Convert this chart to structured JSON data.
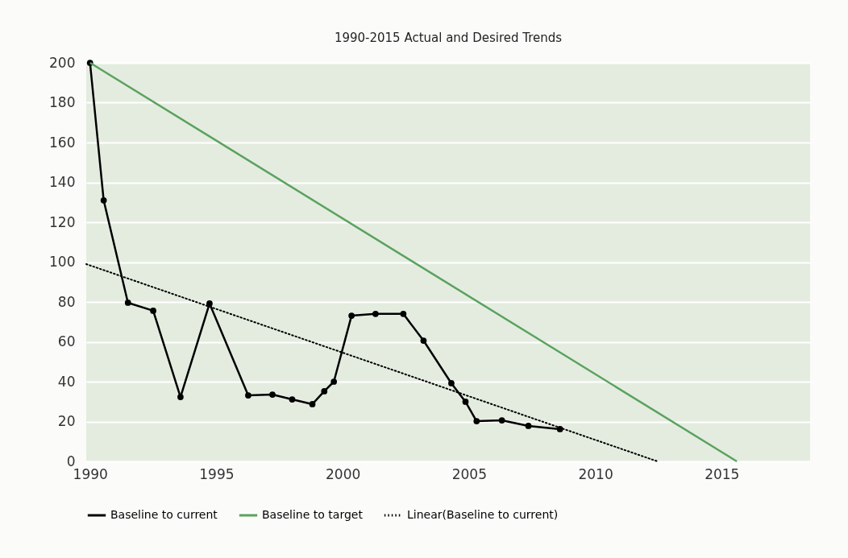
{
  "chart_data": {
    "type": "line",
    "title": "1990-2015 Actual and Desired Trends",
    "xlim": [
      1989.85,
      2018.5
    ],
    "xticks": [
      1990,
      1995,
      2000,
      2005,
      2010,
      2015
    ],
    "ylim": [
      0,
      200
    ],
    "yticks": [
      0,
      20,
      40,
      60,
      80,
      100,
      120,
      140,
      160,
      180,
      200
    ],
    "grid": "y",
    "legend": "bottom",
    "series": [
      {
        "name": "Baseline to current",
        "color": "#000000",
        "marker": "circle",
        "line_style": "solid",
        "x": [
          1990,
          1990.54,
          1991.5,
          1992.5,
          1993.58,
          1994.73,
          1996.26,
          1997.22,
          1998.0,
          1998.8,
          1999.27,
          1999.65,
          2000.35,
          2001.3,
          2002.4,
          2003.2,
          2004.3,
          2004.86,
          2005.3,
          2006.3,
          2007.35,
          2008.6
        ],
        "values": [
          200,
          131,
          79.6,
          75.6,
          32.3,
          79.2,
          33.1,
          33.5,
          31.1,
          28.7,
          35.2,
          40,
          73.1,
          74,
          74,
          60.6,
          39.2,
          29.9,
          20.2,
          20.6,
          17.8,
          16.2
        ]
      },
      {
        "name": "Baseline to target",
        "color": "#5aa25f",
        "marker": "none",
        "line_style": "solid",
        "x": [
          1990,
          2015.6
        ],
        "values": [
          200,
          0
        ]
      },
      {
        "name": "Linear(Baseline to current)",
        "color": "#000000",
        "marker": "none",
        "line_style": "dotted",
        "x": [
          1989.85,
          2012.46
        ],
        "values": [
          99,
          0
        ]
      }
    ]
  }
}
